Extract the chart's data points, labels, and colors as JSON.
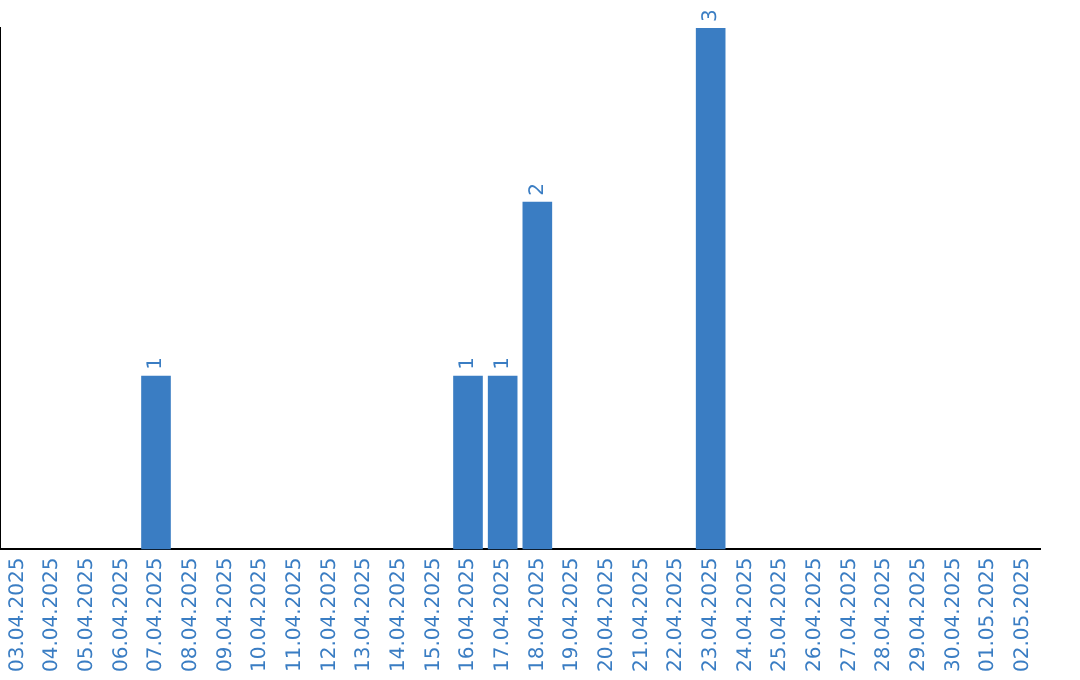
{
  "chart_data": {
    "type": "bar",
    "categories": [
      "03.04.2025",
      "04.04.2025",
      "05.04.2025",
      "06.04.2025",
      "07.04.2025",
      "08.04.2025",
      "09.04.2025",
      "10.04.2025",
      "11.04.2025",
      "12.04.2025",
      "13.04.2025",
      "14.04.2025",
      "15.04.2025",
      "16.04.2025",
      "17.04.2025",
      "18.04.2025",
      "19.04.2025",
      "20.04.2025",
      "21.04.2025",
      "22.04.2025",
      "23.04.2025",
      "24.04.2025",
      "25.04.2025",
      "26.04.2025",
      "27.04.2025",
      "28.04.2025",
      "29.04.2025",
      "30.04.2025",
      "01.05.2025",
      "02.05.2025"
    ],
    "values": [
      0,
      0,
      0,
      0,
      1,
      0,
      0,
      0,
      0,
      0,
      0,
      0,
      0,
      1,
      1,
      2,
      0,
      0,
      0,
      0,
      3,
      0,
      0,
      0,
      0,
      0,
      0,
      0,
      0,
      0
    ],
    "value_labels": [
      null,
      null,
      null,
      null,
      "1",
      null,
      null,
      null,
      null,
      null,
      null,
      null,
      null,
      "1",
      "1",
      "2",
      null,
      null,
      null,
      null,
      "3",
      null,
      null,
      null,
      null,
      null,
      null,
      null,
      null,
      null
    ],
    "color": "#3a7dc3",
    "grid": false,
    "legend": false
  }
}
